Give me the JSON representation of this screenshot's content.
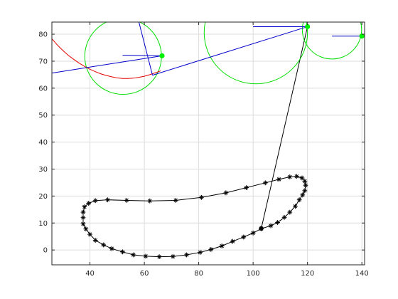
{
  "chart_data": {
    "type": "line",
    "title": "",
    "xlabel": "",
    "ylabel": "",
    "xlim": [
      26,
      141
    ],
    "ylim": [
      -5.5,
      84.5
    ],
    "grid": true,
    "x_ticks": [
      40,
      60,
      80,
      100,
      120,
      140
    ],
    "y_ticks": [
      0,
      10,
      20,
      30,
      40,
      50,
      60,
      70,
      80
    ],
    "x_tick_labels": [
      "40",
      "60",
      "80",
      "100",
      "120",
      "140"
    ],
    "y_tick_labels": [
      "0",
      "10",
      "20",
      "30",
      "40",
      "50",
      "60",
      "70",
      "80"
    ],
    "colors": {
      "path": "#000000",
      "circle": "#00dd00",
      "arc": "#e60000",
      "line": "#0000cc",
      "point": "#00ee00"
    },
    "series": [
      {
        "role": "closed-path-with-markers",
        "marker": "*",
        "x": [
          37.5,
          38,
          39.5,
          42,
          46.5,
          53.5,
          62,
          71.5,
          81,
          90,
          97.5,
          104.5,
          109.5,
          113.5,
          116,
          118,
          119,
          119.3,
          119,
          118.2,
          117,
          115.5,
          113.5,
          111.5,
          109,
          106.5,
          103,
          100,
          96.5,
          92.5,
          88.5,
          84.5,
          80.5,
          75.5,
          70.5,
          65.5,
          60.5,
          56,
          52,
          48,
          45,
          42,
          40,
          38.5,
          37.5,
          37.5
        ],
        "y": [
          14,
          16,
          17.3,
          18.3,
          18.6,
          18.4,
          18.2,
          18.4,
          19.5,
          21.2,
          23.1,
          24.9,
          26.2,
          27.1,
          27.3,
          26.7,
          25.5,
          24,
          22,
          20.4,
          18.6,
          16.2,
          14,
          12.1,
          10.2,
          9,
          7.9,
          6.3,
          4.8,
          3.2,
          1.5,
          0.2,
          -0.9,
          -1.8,
          -2.4,
          -2.5,
          -2.3,
          -1.8,
          -0.7,
          0.5,
          1.9,
          3.6,
          5.8,
          7.8,
          9.7,
          12
        ]
      },
      {
        "role": "link",
        "x": [
          103,
          120
        ],
        "y": [
          8,
          82.8
        ]
      },
      {
        "role": "current-point",
        "x": [
          103
        ],
        "y": [
          8
        ]
      },
      {
        "role": "circle",
        "cx": 52.2,
        "cy": 71.8,
        "r": 14.1
      },
      {
        "role": "circle",
        "cx": 101,
        "cy": 80.6,
        "r": 19
      },
      {
        "role": "circle",
        "cx": 129,
        "cy": 81.7,
        "r": 10.9
      },
      {
        "role": "arc",
        "x": [
          26,
          28,
          30,
          32,
          34,
          36,
          38,
          40,
          42,
          44,
          46,
          48,
          50,
          52,
          54,
          56,
          58,
          60,
          62,
          64,
          66
        ],
        "y": [
          78.3,
          76,
          74,
          72.2,
          70.7,
          69.3,
          68.1,
          67,
          66.1,
          65.3,
          64.7,
          64.2,
          63.8,
          63.6,
          63.6,
          63.7,
          64,
          64.4,
          65,
          65.7,
          66.4
        ]
      },
      {
        "role": "segment",
        "x": [
          26,
          66.5
        ],
        "y": [
          65.6,
          72
        ]
      },
      {
        "role": "segment",
        "x": [
          63,
          120
        ],
        "y": [
          64.8,
          82.8
        ]
      },
      {
        "role": "segment",
        "x": [
          63,
          58
        ],
        "y": [
          64.8,
          84.5
        ]
      },
      {
        "role": "segment",
        "x": [
          52,
          66.5
        ],
        "y": [
          72.2,
          72
        ]
      },
      {
        "role": "segment",
        "x": [
          100,
          120
        ],
        "y": [
          82.8,
          82.8
        ]
      },
      {
        "role": "segment",
        "x": [
          129,
          140
        ],
        "y": [
          79.3,
          79.3
        ]
      },
      {
        "role": "point",
        "x": [
          66.5
        ],
        "y": [
          72
        ]
      },
      {
        "role": "point",
        "x": [
          120
        ],
        "y": [
          82.8
        ]
      },
      {
        "role": "point",
        "x": [
          140
        ],
        "y": [
          79.3
        ]
      }
    ]
  }
}
